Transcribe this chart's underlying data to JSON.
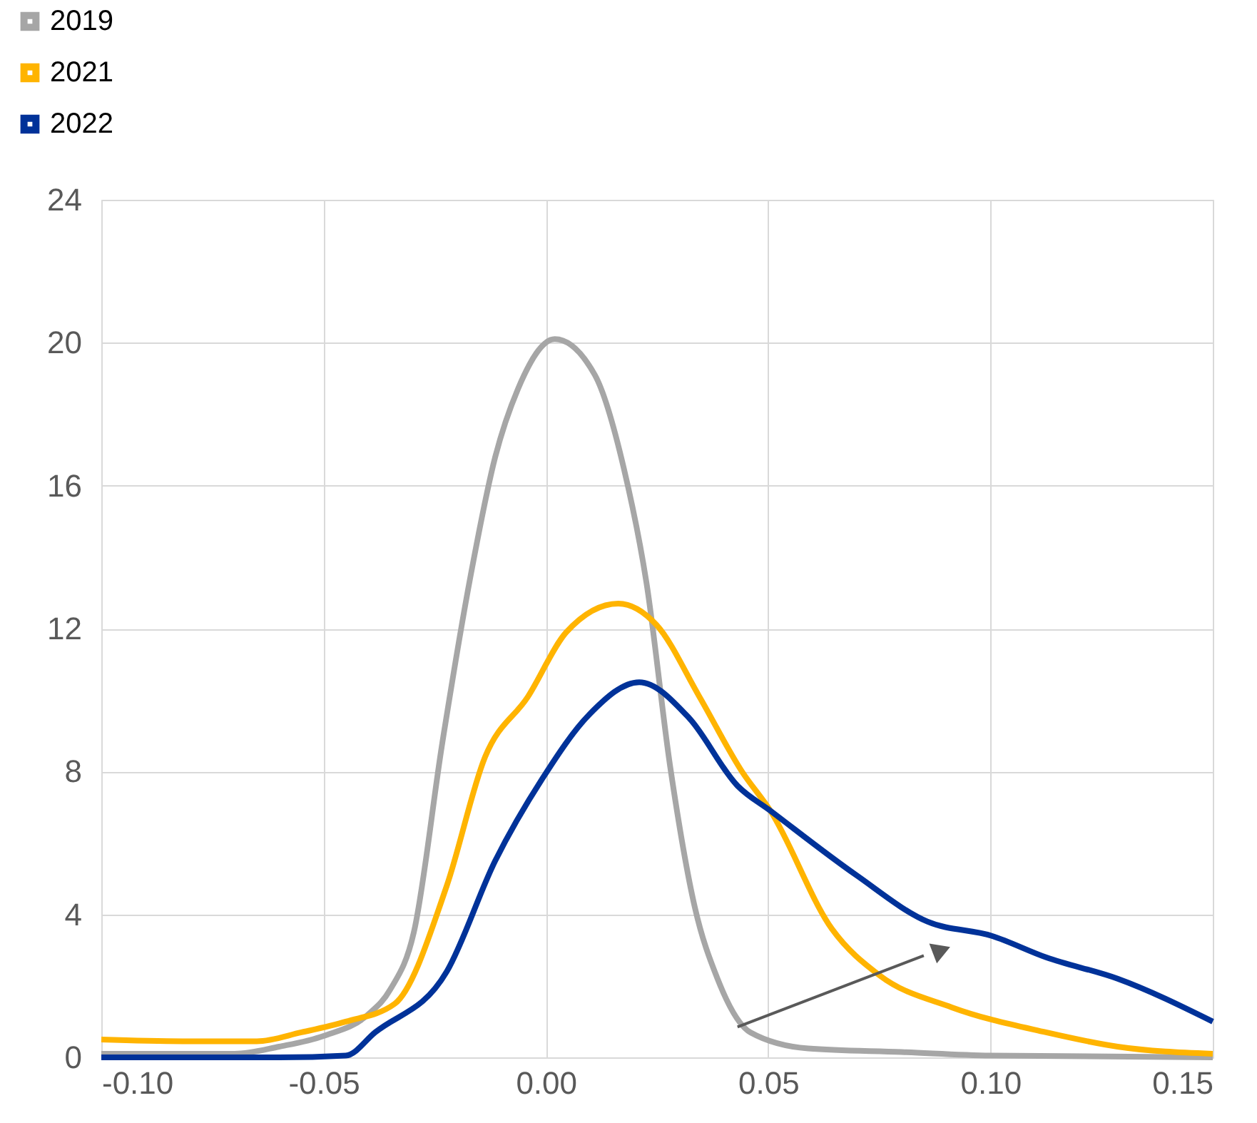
{
  "chart_data": {
    "type": "line",
    "xlim": [
      -0.1,
      0.15
    ],
    "xticks": [
      {
        "value": -0.1,
        "label": "-0.10"
      },
      {
        "value": -0.05,
        "label": "-0.05"
      },
      {
        "value": 0,
        "label": "0.00"
      },
      {
        "value": 0.05,
        "label": "0.05"
      },
      {
        "value": 0.1,
        "label": "0.10"
      },
      {
        "value": 0.15,
        "label": "0.15"
      }
    ],
    "ylim": [
      0,
      24
    ],
    "yticks": [
      0,
      4,
      8,
      12,
      16,
      20,
      24
    ],
    "grid": true,
    "legend": "top left",
    "line_style": "solid",
    "marker": "none",
    "series": [
      {
        "name": "2019",
        "color": "#a6a6a6",
        "x": [
          -0.1,
          -0.07,
          -0.06,
          -0.05,
          -0.04,
          -0.035,
          -0.0297,
          -0.0233,
          -0.0169,
          -0.0114,
          -0.0063,
          0.002,
          0.011,
          0.0175,
          0.0226,
          0.028,
          0.0335,
          0.0386,
          0.046,
          0.059,
          0.08,
          0.1,
          0.15
        ],
        "values": [
          0.1,
          0.1,
          0.3,
          0.6,
          1.2,
          1.9,
          3.5,
          8.8,
          13.5,
          16.8,
          18.7,
          20.1,
          19.1,
          16.5,
          13.3,
          8.1,
          4.2,
          2.2,
          0.7,
          0.25,
          0.15,
          0.05,
          0
        ]
      },
      {
        "name": "2021",
        "color": "#ffb400",
        "x": [
          -0.1,
          -0.08,
          -0.065,
          -0.055,
          -0.045,
          -0.034,
          -0.0223,
          -0.0137,
          -0.004,
          0.0046,
          0.0163,
          0.0249,
          0.0345,
          0.0441,
          0.0505,
          0.0643,
          0.075,
          0.0913,
          0.1125,
          0.1286,
          0.15
        ],
        "values": [
          0.5,
          0.45,
          0.45,
          0.7,
          1.0,
          1.5,
          4.8,
          8.4,
          10.1,
          11.9,
          12.7,
          12.1,
          10.1,
          8.0,
          6.9,
          3.6,
          2.3,
          1.4,
          0.7,
          0.3,
          0.1
        ]
      },
      {
        "name": "2022",
        "color": "#003299",
        "x": [
          -0.1,
          -0.06,
          -0.045,
          -0.0384,
          -0.0223,
          -0.0114,
          -0.0008,
          0.0098,
          0.021,
          0.0322,
          0.0431,
          0.0505,
          0.0698,
          0.0858,
          0.1003,
          0.1125,
          0.1286,
          0.15
        ],
        "values": [
          0,
          0,
          0.05,
          0.7,
          2.4,
          5.5,
          7.8,
          9.6,
          10.5,
          9.5,
          7.6,
          6.9,
          5.1,
          3.8,
          3.4,
          2.8,
          2.2,
          1.0
        ]
      }
    ]
  }
}
